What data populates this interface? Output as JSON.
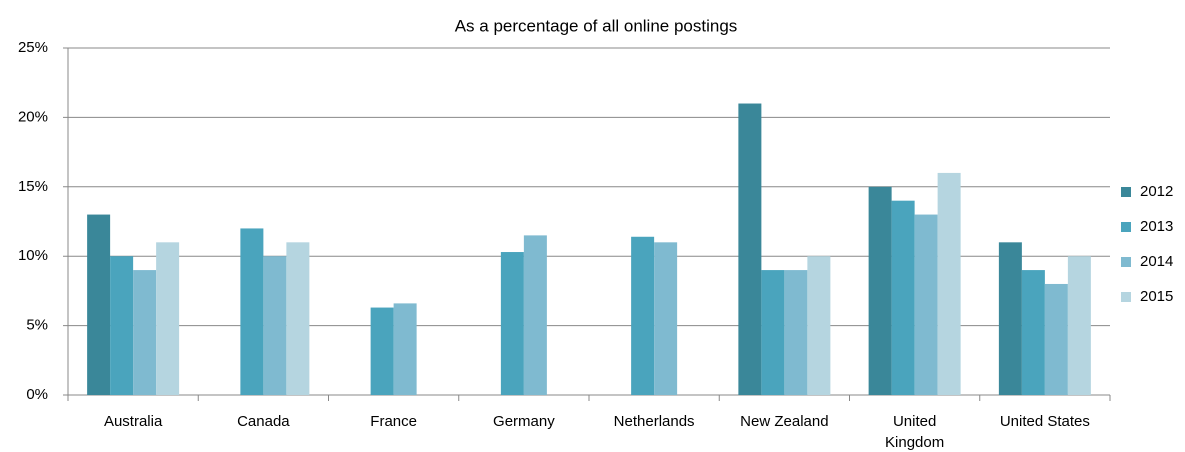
{
  "chart_data": {
    "type": "bar",
    "title": "As a percentage of all online postings",
    "categories": [
      "Australia",
      "Canada",
      "France",
      "Germany",
      "Netherlands",
      "New Zealand",
      "United Kingdom",
      "United States"
    ],
    "series": [
      {
        "name": "2012",
        "color": "#3a8799",
        "values": [
          13,
          null,
          null,
          null,
          null,
          21,
          15,
          11
        ]
      },
      {
        "name": "2013",
        "color": "#4aa4bd",
        "values": [
          10,
          12,
          6.3,
          10.3,
          11.4,
          9,
          14,
          9
        ]
      },
      {
        "name": "2014",
        "color": "#7fbad0",
        "values": [
          9,
          10,
          6.6,
          11.5,
          11,
          9,
          13,
          8
        ]
      },
      {
        "name": "2015",
        "color": "#b5d5e0",
        "values": [
          11,
          11,
          null,
          null,
          null,
          10,
          16,
          10
        ]
      }
    ],
    "ylim": [
      0,
      25
    ],
    "yticks": [
      {
        "value": 0,
        "label": "0%"
      },
      {
        "value": 5,
        "label": "5%"
      },
      {
        "value": 10,
        "label": "10%"
      },
      {
        "value": 15,
        "label": "15%"
      },
      {
        "value": 20,
        "label": "20%"
      },
      {
        "value": 25,
        "label": "25%"
      }
    ],
    "grid": true,
    "legend": "right"
  }
}
